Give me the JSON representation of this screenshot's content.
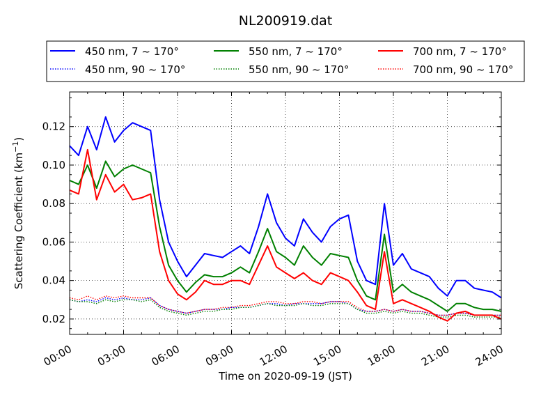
{
  "chart_data": {
    "type": "line",
    "title": "NL200919.dat",
    "xlabel": "Time on 2020-09-19 (JST)",
    "ylabel_main": "Scattering Coefficient (km",
    "ylabel_sup": "−1",
    "ylabel_close": ")",
    "xlim": [
      "00:00",
      "24:00"
    ],
    "ylim": [
      0.012,
      0.138
    ],
    "grid": true,
    "legend_position": "top (above plot)",
    "xticks": [
      "00:00",
      "03:00",
      "06:00",
      "09:00",
      "12:00",
      "15:00",
      "18:00",
      "21:00",
      "24:00"
    ],
    "yticks": [
      "0.02",
      "0.04",
      "0.06",
      "0.08",
      "0.10",
      "0.12"
    ],
    "x_hours": [
      0,
      0.5,
      1,
      1.5,
      2,
      2.5,
      3,
      3.5,
      4,
      4.5,
      5,
      5.5,
      6,
      6.5,
      7,
      7.5,
      8,
      8.5,
      9,
      9.5,
      10,
      10.5,
      11,
      11.5,
      12,
      12.5,
      13,
      13.5,
      14,
      14.5,
      15,
      15.5,
      16,
      16.5,
      17,
      17.5,
      18,
      18.5,
      19,
      19.5,
      20,
      20.5,
      21,
      21.5,
      22,
      22.5,
      23,
      23.5,
      24
    ],
    "series": [
      {
        "name": "450 nm, 7 ~ 170°",
        "color": "#0000ff",
        "style": "solid",
        "values": [
          0.11,
          0.105,
          0.12,
          0.108,
          0.125,
          0.112,
          0.118,
          0.122,
          0.12,
          0.118,
          0.082,
          0.06,
          0.05,
          0.042,
          0.048,
          0.054,
          0.053,
          0.052,
          0.055,
          0.058,
          0.054,
          0.068,
          0.085,
          0.07,
          0.062,
          0.058,
          0.072,
          0.065,
          0.06,
          0.068,
          0.072,
          0.074,
          0.05,
          0.04,
          0.038,
          0.08,
          0.048,
          0.054,
          0.046,
          0.044,
          0.042,
          0.036,
          0.032,
          0.04,
          0.04,
          0.036,
          0.035,
          0.034,
          0.031
        ]
      },
      {
        "name": "450 nm, 90 ~ 170°",
        "color": "#0000ff",
        "style": "dotted",
        "values": [
          0.03,
          0.029,
          0.03,
          0.029,
          0.031,
          0.03,
          0.031,
          0.03,
          0.03,
          0.031,
          0.027,
          0.025,
          0.024,
          0.023,
          0.024,
          0.025,
          0.025,
          0.025,
          0.026,
          0.026,
          0.026,
          0.027,
          0.028,
          0.028,
          0.027,
          0.028,
          0.028,
          0.028,
          0.028,
          0.029,
          0.029,
          0.028,
          0.025,
          0.024,
          0.024,
          0.025,
          0.024,
          0.025,
          0.024,
          0.024,
          0.023,
          0.022,
          0.022,
          0.023,
          0.023,
          0.022,
          0.022,
          0.022,
          0.022
        ]
      },
      {
        "name": "550 nm, 7 ~ 170°",
        "color": "#008000",
        "style": "solid",
        "values": [
          0.092,
          0.09,
          0.1,
          0.088,
          0.102,
          0.094,
          0.098,
          0.1,
          0.098,
          0.096,
          0.068,
          0.048,
          0.04,
          0.034,
          0.039,
          0.043,
          0.042,
          0.042,
          0.044,
          0.047,
          0.044,
          0.055,
          0.067,
          0.055,
          0.052,
          0.048,
          0.058,
          0.052,
          0.048,
          0.054,
          0.053,
          0.052,
          0.04,
          0.032,
          0.03,
          0.064,
          0.034,
          0.038,
          0.034,
          0.032,
          0.03,
          0.027,
          0.024,
          0.028,
          0.028,
          0.026,
          0.025,
          0.025,
          0.024
        ]
      },
      {
        "name": "550 nm, 90 ~ 170°",
        "color": "#008000",
        "style": "dotted",
        "values": [
          0.03,
          0.029,
          0.029,
          0.028,
          0.03,
          0.029,
          0.03,
          0.03,
          0.029,
          0.03,
          0.026,
          0.024,
          0.023,
          0.022,
          0.023,
          0.024,
          0.024,
          0.025,
          0.025,
          0.026,
          0.026,
          0.027,
          0.028,
          0.027,
          0.027,
          0.027,
          0.028,
          0.027,
          0.027,
          0.028,
          0.028,
          0.028,
          0.025,
          0.023,
          0.023,
          0.024,
          0.023,
          0.024,
          0.023,
          0.023,
          0.022,
          0.021,
          0.021,
          0.022,
          0.022,
          0.021,
          0.021,
          0.021,
          0.021
        ]
      },
      {
        "name": "700 nm, 7 ~ 170°",
        "color": "#ff0000",
        "style": "solid",
        "values": [
          0.087,
          0.085,
          0.108,
          0.082,
          0.095,
          0.086,
          0.09,
          0.082,
          0.083,
          0.085,
          0.055,
          0.04,
          0.033,
          0.03,
          0.034,
          0.04,
          0.038,
          0.038,
          0.04,
          0.04,
          0.038,
          0.048,
          0.058,
          0.047,
          0.044,
          0.041,
          0.044,
          0.04,
          0.038,
          0.044,
          0.042,
          0.04,
          0.034,
          0.027,
          0.025,
          0.055,
          0.028,
          0.03,
          0.028,
          0.026,
          0.024,
          0.021,
          0.019,
          0.023,
          0.024,
          0.022,
          0.022,
          0.022,
          0.02
        ]
      },
      {
        "name": "700 nm, 90 ~ 170°",
        "color": "#ff0000",
        "style": "dotted",
        "values": [
          0.031,
          0.03,
          0.032,
          0.03,
          0.032,
          0.031,
          0.032,
          0.031,
          0.031,
          0.031,
          0.027,
          0.025,
          0.024,
          0.023,
          0.024,
          0.025,
          0.025,
          0.026,
          0.026,
          0.027,
          0.027,
          0.028,
          0.029,
          0.029,
          0.028,
          0.028,
          0.029,
          0.029,
          0.028,
          0.029,
          0.029,
          0.029,
          0.026,
          0.024,
          0.024,
          0.025,
          0.024,
          0.025,
          0.024,
          0.024,
          0.023,
          0.022,
          0.022,
          0.023,
          0.023,
          0.022,
          0.022,
          0.022,
          0.022
        ]
      }
    ]
  }
}
